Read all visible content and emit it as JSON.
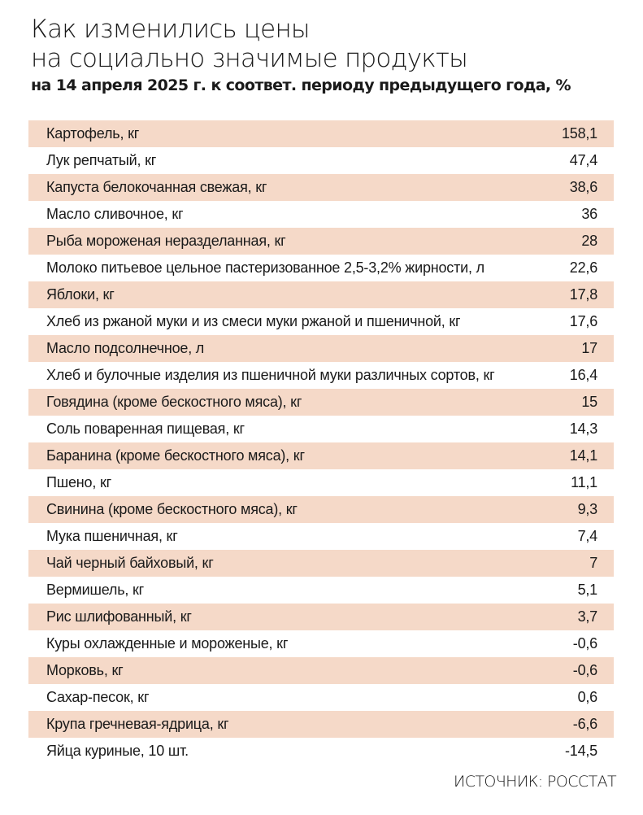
{
  "chart_data": {
    "type": "table",
    "title_line1": "Как изменились цены",
    "title_line2": "на социально значимые продукты",
    "subtitle": "на 14 апреля 2025 г. к соответ. периоду предыдущего года, %",
    "source": "ИСТОЧНИК: РОССТАТ",
    "shade_color": "#f5d9c8",
    "rows": [
      {
        "label": "Картофель, кг",
        "value": "158,1"
      },
      {
        "label": "Лук репчатый, кг",
        "value": "47,4"
      },
      {
        "label": "Капуста белокочанная свежая, кг",
        "value": "38,6"
      },
      {
        "label": "Масло сливочное, кг",
        "value": "36"
      },
      {
        "label": "Рыба мороженая неразделанная, кг",
        "value": "28"
      },
      {
        "label": "Молоко питьевое цельное пастеризованное 2,5-3,2% жирности, л",
        "value": "22,6"
      },
      {
        "label": "Яблоки, кг",
        "value": "17,8"
      },
      {
        "label": "Хлеб из ржаной муки и из смеси муки ржаной и пшеничной, кг",
        "value": "17,6"
      },
      {
        "label": "Масло подсолнечное, л",
        "value": "17"
      },
      {
        "label": "Хлеб и булочные изделия из пшеничной муки различных сортов, кг",
        "value": "16,4"
      },
      {
        "label": "Говядина (кроме бескостного мяса), кг",
        "value": "15"
      },
      {
        "label": "Соль поваренная пищевая, кг",
        "value": "14,3"
      },
      {
        "label": "Баранина (кроме бескостного мяса), кг",
        "value": "14,1"
      },
      {
        "label": "Пшено, кг",
        "value": "11,1"
      },
      {
        "label": "Свинина (кроме бескостного мяса), кг",
        "value": "9,3"
      },
      {
        "label": "Мука пшеничная, кг",
        "value": "7,4"
      },
      {
        "label": "Чай черный байховый, кг",
        "value": "7"
      },
      {
        "label": "Вермишель, кг",
        "value": "5,1"
      },
      {
        "label": "Рис шлифованный, кг",
        "value": "3,7"
      },
      {
        "label": "Куры охлажденные и мороженые, кг",
        "value": "-0,6"
      },
      {
        "label": "Морковь, кг",
        "value": "-0,6"
      },
      {
        "label": "Сахар-песок, кг",
        "value": "0,6"
      },
      {
        "label": "Крупа гречневая-ядрица, кг",
        "value": "-6,6"
      },
      {
        "label": "Яйца куриные, 10 шт.",
        "value": "-14,5"
      }
    ]
  }
}
